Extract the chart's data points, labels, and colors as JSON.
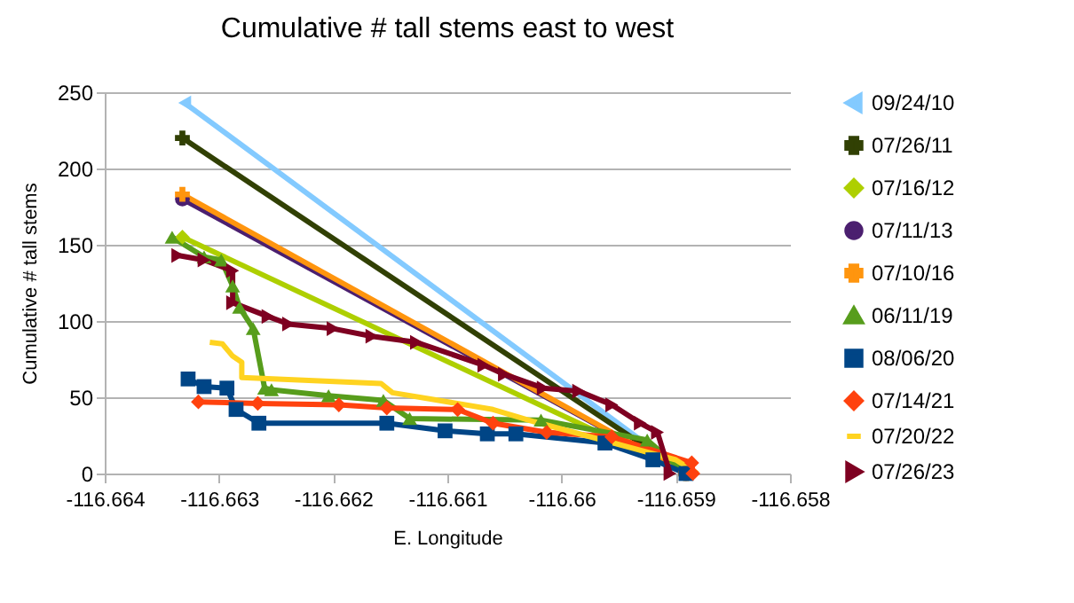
{
  "chart_data": {
    "type": "line",
    "title": "Cumulative # tall stems east to west",
    "xlabel": "E. Longitude",
    "ylabel": "Cumulative # tall stems",
    "xlim": [
      -116.664,
      -116.658
    ],
    "xticks": [
      -116.664,
      -116.663,
      -116.662,
      -116.661,
      -116.66,
      -116.659,
      -116.658
    ],
    "ylim": [
      0,
      250
    ],
    "yticks": [
      0,
      50,
      100,
      150,
      200,
      250
    ],
    "grid": "y",
    "legend": "right",
    "series": [
      {
        "name": "09/24/10",
        "color": "#83caff",
        "marker": "triangle-left",
        "x": [
          -116.6633,
          -116.65891
        ],
        "values": [
          243,
          0
        ]
      },
      {
        "name": "07/26/11",
        "color": "#314004",
        "marker": "cross",
        "x": [
          -116.66332,
          -116.65891
        ],
        "values": [
          220,
          0
        ]
      },
      {
        "name": "07/16/12",
        "color": "#aecf00",
        "marker": "diamond",
        "x": [
          -116.66332,
          -116.65891
        ],
        "values": [
          155,
          0
        ]
      },
      {
        "name": "07/11/13",
        "color": "#4b1f6f",
        "marker": "circle",
        "x": [
          -116.66332,
          -116.65891
        ],
        "values": [
          180,
          0
        ]
      },
      {
        "name": "07/10/16",
        "color": "#ff950e",
        "marker": "cross",
        "x": [
          -116.66332,
          -116.65891
        ],
        "values": [
          183,
          0
        ]
      },
      {
        "name": "06/11/19",
        "color": "#579d1c",
        "marker": "triangle",
        "x": [
          -116.66341,
          -116.66313,
          -116.66298,
          -116.66288,
          -116.66282,
          -116.6627,
          -116.6626,
          -116.66254,
          -116.66204,
          -116.66156,
          -116.66133,
          -116.66018,
          -116.65925,
          -116.65891
        ],
        "values": [
          155,
          142,
          140,
          123,
          109,
          95,
          56,
          55,
          51,
          48,
          36,
          35,
          22,
          0
        ]
      },
      {
        "name": "08/06/20",
        "color": "#004586",
        "marker": "square",
        "x": [
          -116.66327,
          -116.66313,
          -116.66293,
          -116.66285,
          -116.66265,
          -116.66153,
          -116.66102,
          -116.66065,
          -116.6604,
          -116.65962,
          -116.6592,
          -116.65891
        ],
        "values": [
          62,
          57,
          56,
          42,
          33,
          33,
          28,
          26,
          26,
          20,
          9,
          0
        ]
      },
      {
        "name": "07/14/21",
        "color": "#ff420e",
        "marker": "diamond",
        "x": [
          -116.66318,
          -116.66266,
          -116.66195,
          -116.66153,
          -116.66091,
          -116.6606,
          -116.66013,
          -116.65956,
          -116.65886,
          -116.65885
        ],
        "values": [
          47,
          46,
          45,
          43,
          42,
          33,
          27,
          24,
          7,
          0
        ]
      },
      {
        "name": "07/20/22",
        "color": "#ffd320",
        "marker": "none",
        "x": [
          -116.66308,
          -116.66297,
          -116.66288,
          -116.6628,
          -116.6628,
          -116.66158,
          -116.66148,
          -116.6606,
          -116.66024,
          -116.659,
          -116.65881
        ],
        "values": [
          86,
          85,
          77,
          73,
          63,
          59,
          53,
          42,
          34,
          9,
          0
        ]
      },
      {
        "name": "07/26/23",
        "color": "#7e0021",
        "marker": "triangle-right",
        "x": [
          -116.66336,
          -116.66313,
          -116.66288,
          -116.66288,
          -116.66257,
          -116.66239,
          -116.662,
          -116.66166,
          -116.66127,
          -116.66068,
          -116.6605,
          -116.66016,
          -116.65985,
          -116.65956,
          -116.65931,
          -116.65916,
          -116.65905
        ],
        "values": [
          143,
          140,
          133,
          112,
          103,
          98,
          95,
          90,
          86,
          71,
          65,
          56,
          54,
          45,
          33,
          27,
          0
        ]
      }
    ]
  }
}
